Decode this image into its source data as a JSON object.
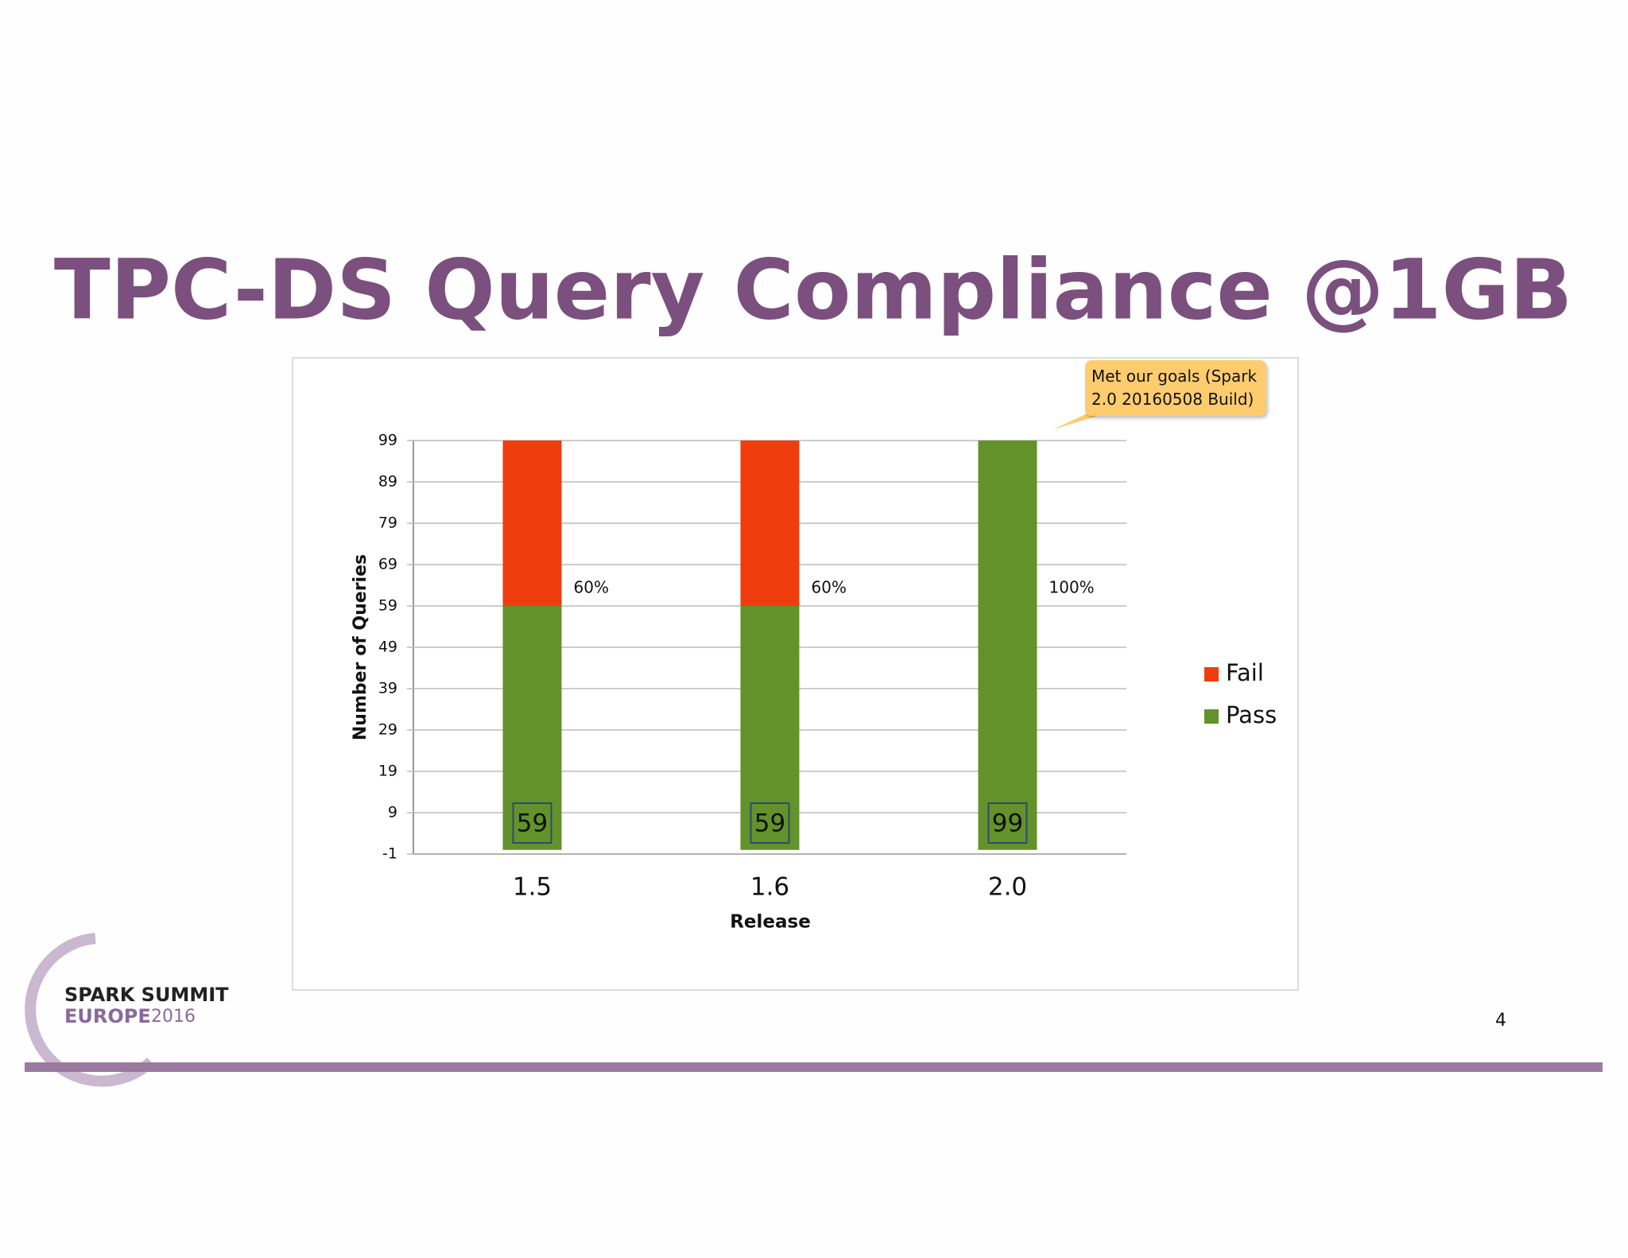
{
  "chart_data": {
    "type": "bar",
    "stacked": true,
    "title": "TPC-DS Query Compliance  @1GB",
    "y_label": "Number of Queries",
    "x_label": "Release",
    "categories": [
      "1.5",
      "1.6",
      "2.0"
    ],
    "series": [
      {
        "name": "Pass",
        "color": "#63922a",
        "values": [
          59,
          59,
          99
        ],
        "labeled": true
      },
      {
        "name": "Fail",
        "color": "#f03d0e",
        "values": [
          40,
          40,
          0
        ]
      }
    ],
    "percent_labels": [
      "60%",
      "60%",
      "100%"
    ],
    "callout": "Met our goals (Spark 2.0 20160508 Build)",
    "ylim": [
      -1,
      99
    ],
    "yticks": [
      -1,
      9,
      19,
      29,
      39,
      49,
      59,
      69,
      79,
      89,
      99
    ],
    "grid": true,
    "legend": "right"
  },
  "footer": {
    "event": "SPARK SUMMIT",
    "location": "EUROPE",
    "year": 2016,
    "page": 4
  }
}
